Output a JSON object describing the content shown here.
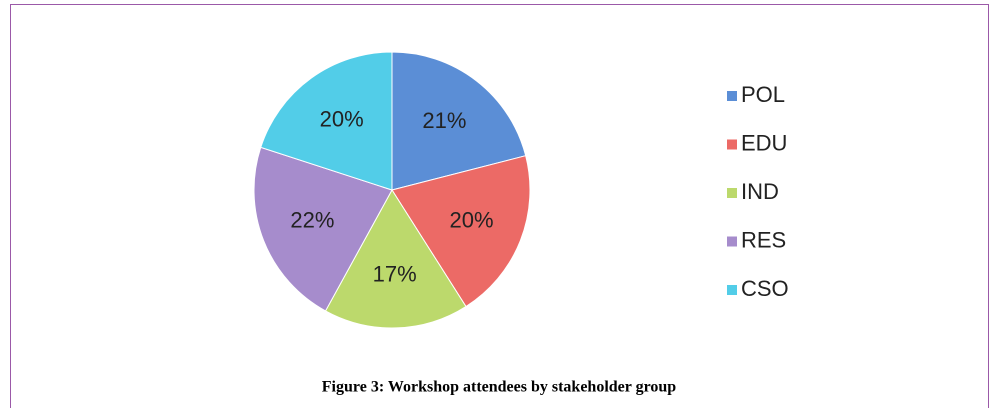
{
  "chart_data": {
    "type": "pie",
    "caption": "Figure 3: Workshop attendees by stakeholder group",
    "categories": [
      "POL",
      "EDU",
      "IND",
      "RES",
      "CSO"
    ],
    "values": [
      21,
      20,
      17,
      22,
      20
    ],
    "value_labels": [
      "21%",
      "20%",
      "17%",
      "22%",
      "20%"
    ],
    "colors": [
      "#5b8ed6",
      "#ec6a66",
      "#bcd96c",
      "#a68ccc",
      "#52cde8"
    ],
    "legend": "right"
  }
}
